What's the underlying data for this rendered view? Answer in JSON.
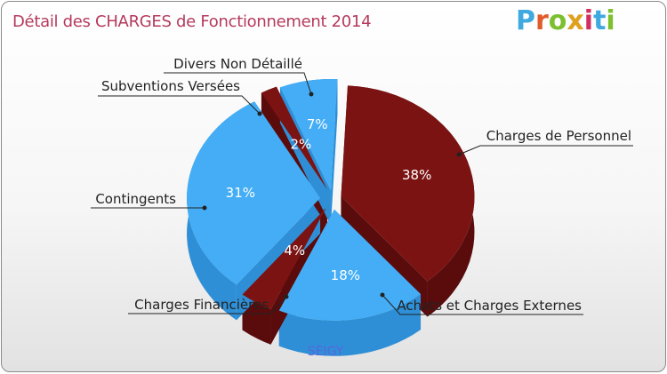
{
  "title": "Détail des CHARGES de Fonctionnement 2014",
  "logo": {
    "text": "Proxiti",
    "letters": [
      "P",
      "r",
      "o",
      "x",
      "i",
      "t",
      "i"
    ],
    "colors": [
      "#3fa9e0",
      "#e05a2a",
      "#7cbf2f",
      "#e0a020",
      "#d03060",
      "#3fa9e0",
      "#7cbf2f"
    ]
  },
  "colors": {
    "dark_red": "#7b1313",
    "dark_red_side": "#5a0c0c",
    "blue": "#44adf5",
    "blue_side": "#2f8fd6",
    "title": "#b53a5c",
    "city": "#5566dd"
  },
  "chart_data": {
    "type": "pie",
    "title": "Détail des CHARGES de Fonctionnement 2014",
    "subtitle": "SEIGY",
    "slices": [
      {
        "label": "Charges de Personnel",
        "value": 38,
        "pct_label": "38%",
        "color": "dark_red"
      },
      {
        "label": "Achats et Charges Externes",
        "value": 18,
        "pct_label": "18%",
        "color": "blue"
      },
      {
        "label": "Charges Financières",
        "value": 4,
        "pct_label": "4%",
        "color": "dark_red"
      },
      {
        "label": "Contingents",
        "value": 31,
        "pct_label": "31%",
        "color": "blue"
      },
      {
        "label": "Subventions Versées",
        "value": 2,
        "pct_label": "2%",
        "color": "dark_red"
      },
      {
        "label": "Divers Non Détaillé",
        "value": 7,
        "pct_label": "7%",
        "color": "blue"
      }
    ]
  }
}
